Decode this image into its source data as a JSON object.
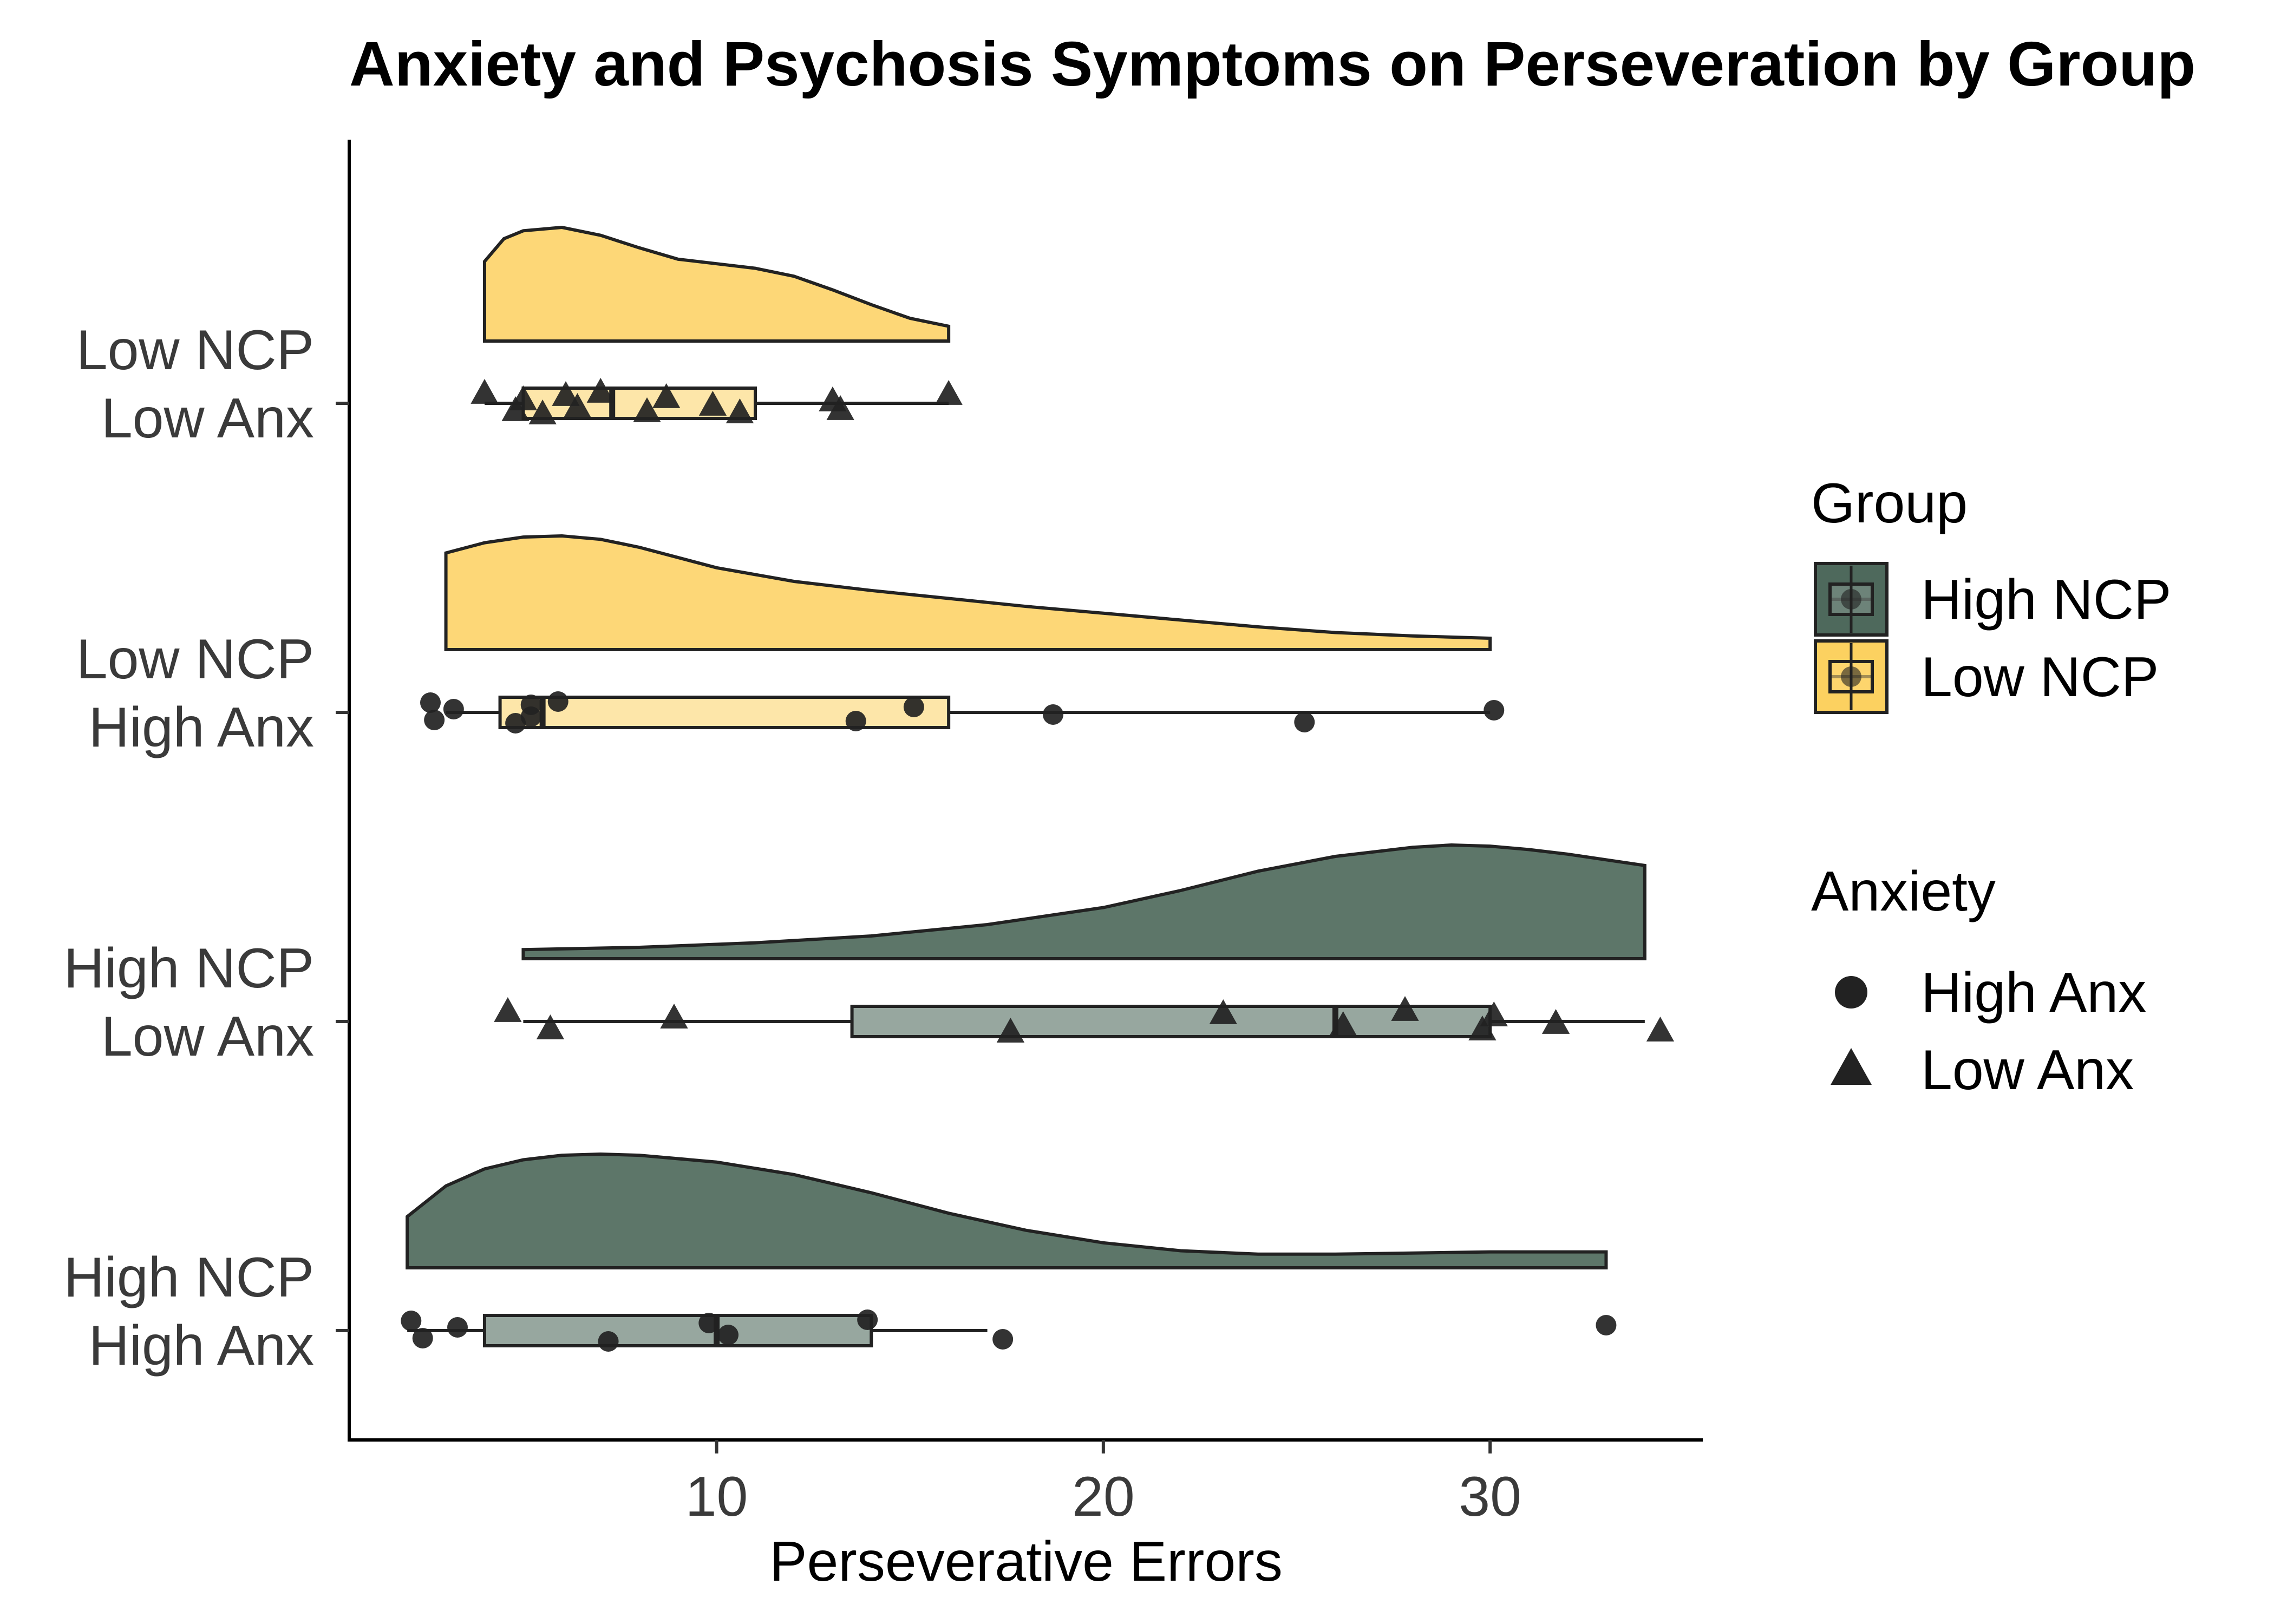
{
  "chart_data": {
    "type": "raincloud",
    "title": "Anxiety and Psychosis Symptoms on Perseveration by Group",
    "xlabel": "Perseverative Errors",
    "ylabel": "",
    "xlim": [
      0.5,
      35.5
    ],
    "x_ticks": [
      10,
      20,
      30
    ],
    "grid": false,
    "colors": {
      "High NCP": "#2f4f3f",
      "Low NCP": "#fbbd1c"
    },
    "categories": [
      {
        "label_lines": [
          "Low NCP",
          "Low Anx"
        ],
        "group": "Low NCP",
        "anxiety": "Low Anx",
        "box": {
          "q1": 5,
          "median": 7.3,
          "q3": 11,
          "whisker_low": 4,
          "whisker_high": 16
        },
        "density": {
          "x": [
            4,
            4.5,
            5,
            6,
            7,
            8,
            9,
            10,
            11,
            12,
            13,
            14,
            15,
            16
          ],
          "y": [
            0.7,
            0.9,
            0.97,
            1.0,
            0.93,
            0.82,
            0.72,
            0.68,
            0.64,
            0.57,
            0.45,
            0.32,
            0.2,
            0.13
          ]
        },
        "points": [
          {
            "x": 4.0,
            "shape": "triangle"
          },
          {
            "x": 4.8,
            "shape": "triangle"
          },
          {
            "x": 5.0,
            "shape": "triangle"
          },
          {
            "x": 5.5,
            "shape": "triangle"
          },
          {
            "x": 6.1,
            "shape": "triangle"
          },
          {
            "x": 6.4,
            "shape": "triangle"
          },
          {
            "x": 7.0,
            "shape": "triangle"
          },
          {
            "x": 8.2,
            "shape": "triangle"
          },
          {
            "x": 8.7,
            "shape": "triangle"
          },
          {
            "x": 9.9,
            "shape": "triangle"
          },
          {
            "x": 10.6,
            "shape": "triangle"
          },
          {
            "x": 13.0,
            "shape": "triangle"
          },
          {
            "x": 13.2,
            "shape": "triangle"
          },
          {
            "x": 16.0,
            "shape": "triangle"
          }
        ]
      },
      {
        "label_lines": [
          "Low NCP",
          "High Anx"
        ],
        "group": "Low NCP",
        "anxiety": "High Anx",
        "box": {
          "q1": 4.4,
          "median": 5.5,
          "q3": 16,
          "whisker_low": 3,
          "whisker_high": 30
        },
        "density": {
          "x": [
            3,
            4,
            5,
            6,
            7,
            8,
            10,
            12,
            14,
            16,
            18,
            20,
            22,
            24,
            26,
            28,
            30
          ],
          "y": [
            0.85,
            0.94,
            0.99,
            1.0,
            0.97,
            0.9,
            0.72,
            0.6,
            0.52,
            0.45,
            0.38,
            0.32,
            0.26,
            0.2,
            0.15,
            0.12,
            0.1
          ]
        },
        "points": [
          {
            "x": 2.6,
            "shape": "circle"
          },
          {
            "x": 2.7,
            "shape": "circle"
          },
          {
            "x": 3.2,
            "shape": "circle"
          },
          {
            "x": 4.8,
            "shape": "circle"
          },
          {
            "x": 5.2,
            "shape": "circle"
          },
          {
            "x": 5.2,
            "shape": "circle"
          },
          {
            "x": 5.9,
            "shape": "circle"
          },
          {
            "x": 13.6,
            "shape": "circle"
          },
          {
            "x": 15.1,
            "shape": "circle"
          },
          {
            "x": 18.7,
            "shape": "circle"
          },
          {
            "x": 25.2,
            "shape": "circle"
          },
          {
            "x": 30.1,
            "shape": "circle"
          }
        ]
      },
      {
        "label_lines": [
          "High NCP",
          "Low Anx"
        ],
        "group": "High NCP",
        "anxiety": "Low Anx",
        "box": {
          "q1": 13.5,
          "median": 26,
          "q3": 30,
          "whisker_low": 5,
          "whisker_high": 34
        },
        "density": {
          "x": [
            5,
            8,
            11,
            14,
            17,
            20,
            22,
            24,
            26,
            28,
            29,
            30,
            31,
            32,
            33,
            34
          ],
          "y": [
            0.08,
            0.1,
            0.14,
            0.2,
            0.3,
            0.45,
            0.6,
            0.77,
            0.9,
            0.98,
            1.0,
            0.99,
            0.96,
            0.92,
            0.87,
            0.82
          ]
        },
        "points": [
          {
            "x": 4.6,
            "shape": "triangle"
          },
          {
            "x": 5.7,
            "shape": "triangle"
          },
          {
            "x": 8.9,
            "shape": "triangle"
          },
          {
            "x": 17.6,
            "shape": "triangle"
          },
          {
            "x": 23.1,
            "shape": "triangle"
          },
          {
            "x": 26.2,
            "shape": "triangle"
          },
          {
            "x": 27.8,
            "shape": "triangle"
          },
          {
            "x": 29.8,
            "shape": "triangle"
          },
          {
            "x": 30.1,
            "shape": "triangle"
          },
          {
            "x": 31.7,
            "shape": "triangle"
          },
          {
            "x": 34.4,
            "shape": "triangle"
          }
        ]
      },
      {
        "label_lines": [
          "High NCP",
          "High Anx"
        ],
        "group": "High NCP",
        "anxiety": "High Anx",
        "box": {
          "q1": 4,
          "median": 10,
          "q3": 14,
          "whisker_low": 2,
          "whisker_high": 17
        },
        "density": {
          "x": [
            2,
            3,
            4,
            5,
            6,
            7,
            8,
            10,
            12,
            14,
            16,
            18,
            20,
            22,
            24,
            26,
            28,
            30,
            32,
            33
          ],
          "y": [
            0.45,
            0.72,
            0.87,
            0.95,
            0.99,
            1.0,
            0.99,
            0.93,
            0.82,
            0.66,
            0.48,
            0.33,
            0.22,
            0.15,
            0.12,
            0.12,
            0.13,
            0.14,
            0.14,
            0.14
          ]
        },
        "points": [
          {
            "x": 2.1,
            "shape": "circle"
          },
          {
            "x": 2.4,
            "shape": "circle"
          },
          {
            "x": 3.3,
            "shape": "circle"
          },
          {
            "x": 7.2,
            "shape": "circle"
          },
          {
            "x": 9.8,
            "shape": "circle"
          },
          {
            "x": 10.3,
            "shape": "circle"
          },
          {
            "x": 13.9,
            "shape": "circle"
          },
          {
            "x": 17.4,
            "shape": "circle"
          },
          {
            "x": 33.0,
            "shape": "circle"
          }
        ]
      }
    ],
    "legends": [
      {
        "title": "Group",
        "items": [
          {
            "label": "High NCP",
            "key": "High NCP"
          },
          {
            "label": "Low NCP",
            "key": "Low NCP"
          }
        ]
      },
      {
        "title": "Anxiety",
        "items": [
          {
            "label": "High Anx",
            "shape": "circle"
          },
          {
            "label": "Low Anx",
            "shape": "triangle"
          }
        ]
      }
    ]
  }
}
